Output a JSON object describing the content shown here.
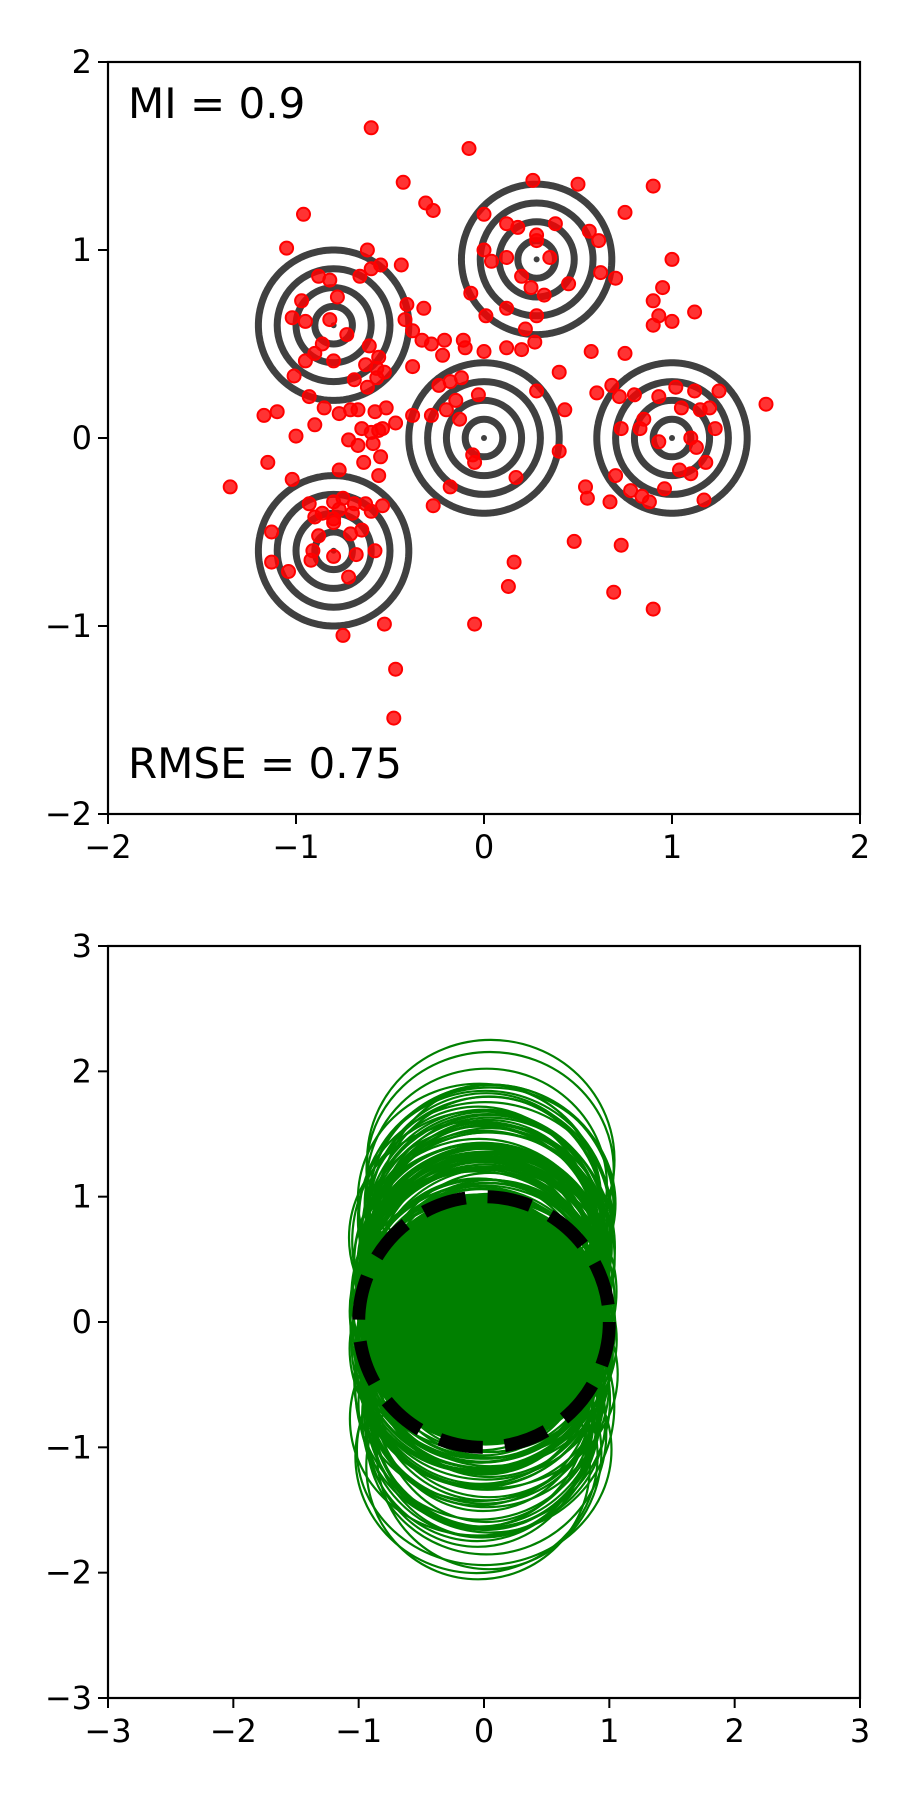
{
  "chart_data": [
    {
      "type": "scatter",
      "annotations": {
        "top_left": "MI = 0.9",
        "bottom_left": "RMSE = 0.75"
      },
      "xlim": [
        -2,
        2
      ],
      "ylim": [
        -2,
        2
      ],
      "xticks": [
        "−2",
        "−1",
        "0",
        "1",
        "2"
      ],
      "yticks": [
        "−2",
        "−1",
        "0",
        "1",
        "2"
      ],
      "grid": false,
      "colors": {
        "points": "#ff0000",
        "contours": "#404040"
      },
      "contour_centers": [
        [
          -0.8,
          0.6
        ],
        [
          0.28,
          0.95
        ],
        [
          0,
          0
        ],
        [
          1,
          0
        ],
        [
          -0.8,
          -0.6
        ]
      ],
      "contour_radii": [
        0.1,
        0.2,
        0.3,
        0.4
      ],
      "points": [
        [
          -0.6,
          1.65
        ],
        [
          -0.08,
          1.54
        ],
        [
          -0.43,
          1.36
        ],
        [
          -0.31,
          1.25
        ],
        [
          -0.27,
          1.21
        ],
        [
          -0.96,
          1.19
        ],
        [
          0.26,
          1.37
        ],
        [
          0.5,
          1.35
        ],
        [
          0.9,
          1.34
        ],
        [
          0.75,
          1.2
        ],
        [
          -1.05,
          1.01
        ],
        [
          -0.62,
          1.0
        ],
        [
          -0.88,
          0.86
        ],
        [
          -0.82,
          0.84
        ],
        [
          -0.66,
          0.86
        ],
        [
          -0.6,
          0.9
        ],
        [
          -0.55,
          0.92
        ],
        [
          -0.44,
          0.92
        ],
        [
          0.0,
          1.19
        ],
        [
          0.12,
          1.14
        ],
        [
          0.18,
          1.12
        ],
        [
          0.28,
          1.08
        ],
        [
          0.38,
          1.14
        ],
        [
          0.56,
          1.1
        ],
        [
          0.61,
          1.05
        ],
        [
          0.0,
          1.0
        ],
        [
          0.04,
          0.94
        ],
        [
          0.12,
          0.96
        ],
        [
          0.28,
          1.05
        ],
        [
          0.35,
          0.96
        ],
        [
          0.45,
          0.82
        ],
        [
          0.62,
          0.88
        ],
        [
          0.7,
          0.85
        ],
        [
          0.95,
          0.8
        ],
        [
          1.0,
          0.95
        ],
        [
          0.2,
          0.86
        ],
        [
          0.25,
          0.8
        ],
        [
          0.32,
          0.76
        ],
        [
          -0.97,
          0.73
        ],
        [
          -0.78,
          0.75
        ],
        [
          -0.41,
          0.71
        ],
        [
          -0.32,
          0.69
        ],
        [
          -0.07,
          0.77
        ],
        [
          0.01,
          0.65
        ],
        [
          0.12,
          0.69
        ],
        [
          0.28,
          0.65
        ],
        [
          0.22,
          0.58
        ],
        [
          0.9,
          0.73
        ],
        [
          0.93,
          0.65
        ],
        [
          0.9,
          0.6
        ],
        [
          1.12,
          0.67
        ],
        [
          1.0,
          0.62
        ],
        [
          -1.02,
          0.64
        ],
        [
          -0.95,
          0.62
        ],
        [
          -0.82,
          0.63
        ],
        [
          -0.73,
          0.55
        ],
        [
          -0.86,
          0.5
        ],
        [
          -0.9,
          0.45
        ],
        [
          -0.61,
          0.49
        ],
        [
          -0.56,
          0.43
        ],
        [
          -0.42,
          0.63
        ],
        [
          -0.38,
          0.57
        ],
        [
          -0.33,
          0.52
        ],
        [
          -0.28,
          0.5
        ],
        [
          -0.21,
          0.52
        ],
        [
          -0.11,
          0.52
        ],
        [
          -0.22,
          0.44
        ],
        [
          -0.1,
          0.48
        ],
        [
          0.0,
          0.46
        ],
        [
          0.12,
          0.48
        ],
        [
          0.2,
          0.47
        ],
        [
          0.27,
          0.51
        ],
        [
          0.4,
          0.35
        ],
        [
          0.57,
          0.46
        ],
        [
          0.75,
          0.45
        ],
        [
          -0.95,
          0.41
        ],
        [
          -0.8,
          0.41
        ],
        [
          -0.63,
          0.39
        ],
        [
          -0.57,
          0.37
        ],
        [
          -0.53,
          0.35
        ],
        [
          -0.38,
          0.38
        ],
        [
          -0.69,
          0.31
        ],
        [
          -0.57,
          0.32
        ],
        [
          -1.01,
          0.33
        ],
        [
          -0.62,
          0.27
        ],
        [
          -0.24,
          0.28
        ],
        [
          -0.18,
          0.3
        ],
        [
          -0.12,
          0.32
        ],
        [
          0.28,
          0.25
        ],
        [
          -1.17,
          0.12
        ],
        [
          -1.1,
          0.14
        ],
        [
          -0.93,
          0.22
        ],
        [
          -0.85,
          0.16
        ],
        [
          -0.71,
          0.15
        ],
        [
          -0.77,
          0.13
        ],
        [
          -0.67,
          0.15
        ],
        [
          -0.58,
          0.14
        ],
        [
          -0.52,
          0.16
        ],
        [
          -0.38,
          0.12
        ],
        [
          -0.28,
          0.12
        ],
        [
          -0.2,
          0.15
        ],
        [
          -0.15,
          0.2
        ],
        [
          -0.03,
          0.23
        ],
        [
          0.43,
          0.15
        ],
        [
          0.6,
          0.24
        ],
        [
          0.68,
          0.28
        ],
        [
          0.72,
          0.22
        ],
        [
          0.8,
          0.23
        ],
        [
          0.85,
          0.1
        ],
        [
          0.93,
          0.22
        ],
        [
          1.02,
          0.27
        ],
        [
          1.12,
          0.25
        ],
        [
          1.05,
          0.16
        ],
        [
          1.15,
          0.15
        ],
        [
          1.2,
          0.16
        ],
        [
          1.25,
          0.25
        ],
        [
          1.5,
          0.18
        ],
        [
          -1.0,
          0.01
        ],
        [
          -0.9,
          0.07
        ],
        [
          -0.65,
          0.05
        ],
        [
          -0.6,
          0.03
        ],
        [
          -0.56,
          0.04
        ],
        [
          -0.72,
          -0.01
        ],
        [
          -0.67,
          -0.04
        ],
        [
          -0.59,
          -0.03
        ],
        [
          -0.54,
          0.05
        ],
        [
          -0.47,
          0.08
        ],
        [
          -0.13,
          0.1
        ],
        [
          -0.06,
          -0.09
        ],
        [
          0.4,
          -0.07
        ],
        [
          0.73,
          0.05
        ],
        [
          0.83,
          0.05
        ],
        [
          0.93,
          -0.02
        ],
        [
          1.1,
          0.0
        ],
        [
          1.13,
          -0.05
        ],
        [
          1.18,
          -0.13
        ],
        [
          1.23,
          0.05
        ],
        [
          -1.15,
          -0.13
        ],
        [
          -0.77,
          -0.17
        ],
        [
          -0.64,
          -0.13
        ],
        [
          -0.55,
          -0.1
        ],
        [
          -0.56,
          -0.2
        ],
        [
          -0.05,
          -0.13
        ],
        [
          0.17,
          -0.21
        ],
        [
          0.54,
          -0.26
        ],
        [
          0.7,
          -0.2
        ],
        [
          0.78,
          -0.28
        ],
        [
          0.84,
          -0.31
        ],
        [
          0.88,
          -0.34
        ],
        [
          0.96,
          -0.27
        ],
        [
          1.04,
          -0.17
        ],
        [
          1.1,
          -0.19
        ],
        [
          1.17,
          -0.33
        ],
        [
          -1.35,
          -0.26
        ],
        [
          -1.02,
          -0.22
        ],
        [
          -0.93,
          -0.35
        ],
        [
          -0.8,
          -0.34
        ],
        [
          -0.75,
          -0.32
        ],
        [
          -0.69,
          -0.35
        ],
        [
          -0.63,
          -0.35
        ],
        [
          -0.86,
          -0.4
        ],
        [
          -0.77,
          -0.38
        ],
        [
          -0.7,
          -0.4
        ],
        [
          -0.6,
          -0.39
        ],
        [
          -0.54,
          -0.36
        ],
        [
          -0.27,
          -0.36
        ],
        [
          -0.18,
          -0.26
        ],
        [
          0.55,
          -0.32
        ],
        [
          0.67,
          -0.34
        ],
        [
          -0.88,
          -0.52
        ],
        [
          -0.8,
          -0.45
        ],
        [
          -0.71,
          -0.51
        ],
        [
          -0.65,
          -0.49
        ],
        [
          -0.58,
          -0.6
        ],
        [
          -1.13,
          -0.5
        ],
        [
          -1.13,
          -0.66
        ],
        [
          -0.91,
          -0.6
        ],
        [
          -0.68,
          -0.62
        ],
        [
          -1.04,
          -0.71
        ],
        [
          -0.92,
          -0.65
        ],
        [
          -0.8,
          -0.63
        ],
        [
          -0.72,
          -0.74
        ],
        [
          0.16,
          -0.66
        ],
        [
          0.13,
          -0.79
        ],
        [
          0.48,
          -0.55
        ],
        [
          0.73,
          -0.57
        ],
        [
          0.69,
          -0.82
        ],
        [
          0.9,
          -0.91
        ],
        [
          -0.75,
          -1.05
        ],
        [
          -0.53,
          -0.99
        ],
        [
          -0.05,
          -0.99
        ],
        [
          -0.47,
          -1.23
        ],
        [
          -0.48,
          -1.49
        ],
        [
          -0.8,
          -0.43
        ],
        [
          -0.9,
          -0.42
        ]
      ]
    },
    {
      "type": "line",
      "xlim": [
        -3,
        3
      ],
      "ylim": [
        -3,
        3
      ],
      "xticks": [
        "−3",
        "−2",
        "−1",
        "0",
        "1",
        "2",
        "3"
      ],
      "yticks": [
        "−3",
        "−2",
        "−1",
        "0",
        "1",
        "2",
        "3"
      ],
      "grid": false,
      "colors": {
        "curves": "#008000",
        "reference": "#000000"
      },
      "reference_circle": {
        "center": [
          0,
          0
        ],
        "radius": 1,
        "style": "dashed"
      },
      "green_ellipse_count": 140,
      "green_ellipse_semi_axes": [
        0.95,
        1.0
      ],
      "green_center_y_range": [
        -1.4,
        1.55
      ]
    }
  ]
}
